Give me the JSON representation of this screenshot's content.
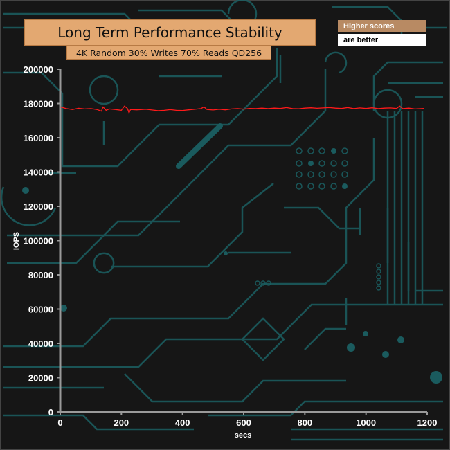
{
  "chart_data": {
    "type": "line",
    "title": "Long Term Performance Stability",
    "subtitle": "4K Random 30% Writes 70% Reads QD256",
    "xlabel": "secs",
    "ylabel": "IOPS",
    "xlim": [
      0,
      1200
    ],
    "ylim": [
      0,
      200000
    ],
    "xticks": [
      0,
      200,
      400,
      600,
      800,
      1000,
      1200
    ],
    "yticks": [
      0,
      20000,
      40000,
      60000,
      80000,
      100000,
      120000,
      140000,
      160000,
      180000,
      200000
    ],
    "grid": false,
    "series": [
      {
        "color": "#ff1a1a",
        "x": [
          0,
          20,
          40,
          60,
          80,
          100,
          120,
          135,
          140,
          150,
          160,
          180,
          200,
          210,
          220,
          225,
          230,
          250,
          280,
          300,
          320,
          340,
          360,
          380,
          400,
          420,
          440,
          460,
          470,
          480,
          500,
          520,
          540,
          560,
          580,
          600,
          620,
          640,
          660,
          680,
          700,
          720,
          740,
          760,
          780,
          800,
          820,
          840,
          860,
          880,
          900,
          920,
          940,
          960,
          980,
          1000,
          1020,
          1040,
          1060,
          1080,
          1100,
          1110,
          1120,
          1140,
          1160,
          1180,
          1190
        ],
        "y": [
          178000,
          177000,
          176500,
          177200,
          176800,
          177000,
          176500,
          175500,
          178000,
          176000,
          176800,
          176500,
          176000,
          178500,
          177000,
          174500,
          176500,
          176300,
          176600,
          176200,
          175800,
          176000,
          176400,
          176000,
          175900,
          176300,
          176600,
          177000,
          178000,
          176500,
          176200,
          176600,
          176300,
          176800,
          177000,
          176700,
          177100,
          177000,
          177300,
          177000,
          177300,
          177100,
          177600,
          177000,
          176900,
          177300,
          177500,
          177200,
          177400,
          177600,
          177300,
          177100,
          177600,
          177000,
          177400,
          177100,
          177500,
          177000,
          177300,
          177400,
          177100,
          178500,
          177000,
          177300,
          176800,
          177000,
          177100
        ]
      }
    ]
  },
  "notes": {
    "line1": "Higher scores",
    "line2": "are better"
  },
  "colors": {
    "background": "#161616",
    "circuit": "#1b5f62",
    "title_fill": "#e3a871",
    "series": "#ff1a1a"
  }
}
